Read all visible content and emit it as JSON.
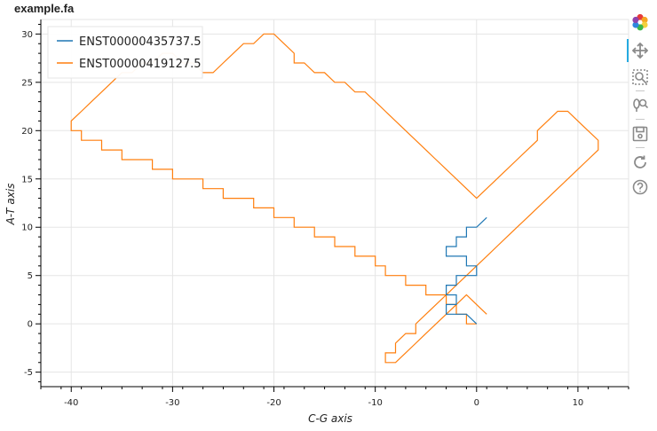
{
  "chart_data": {
    "type": "line",
    "title": "example.fa",
    "xlabel": "C-G axis",
    "ylabel": "A-T axis",
    "xlim": [
      -43,
      15
    ],
    "ylim": [
      -6.5,
      31.5
    ],
    "x_ticks": [
      -40,
      -30,
      -20,
      -10,
      0,
      10
    ],
    "y_ticks": [
      -5,
      0,
      5,
      10,
      15,
      20,
      25,
      30
    ],
    "grid": true,
    "legend_position": "top-left",
    "series": [
      {
        "name": "ENST00000435737.5",
        "color": "#1f77b4",
        "x": [
          0,
          -1,
          -2,
          -3,
          -3,
          -2,
          -2,
          -3,
          -3,
          -2,
          -2,
          -1,
          0,
          0,
          -1,
          -1,
          -2,
          -3,
          -3,
          -2,
          -2,
          -1,
          -1,
          0,
          1
        ],
        "y": [
          0,
          1,
          1,
          1,
          2,
          2,
          3,
          3,
          4,
          4,
          5,
          5,
          5,
          6,
          6,
          7,
          7,
          7,
          8,
          8,
          9,
          9,
          10,
          10,
          11
        ]
      },
      {
        "name": "ENST00000419127.5",
        "color": "#ff7f0e",
        "x": [
          0,
          -1,
          -1,
          -2,
          -2,
          -3,
          -3,
          -4,
          -5,
          -5,
          -6,
          -7,
          -7,
          -8,
          -9,
          -9,
          -10,
          -10,
          -11,
          -12,
          -12,
          -13,
          -14,
          -14,
          -15,
          -16,
          -16,
          -17,
          -18,
          -18,
          -19,
          -20,
          -20,
          -21,
          -22,
          -22,
          -23,
          -24,
          -25,
          -25,
          -26,
          -27,
          -27,
          -28,
          -29,
          -30,
          -30,
          -31,
          -32,
          -32,
          -33,
          -34,
          -35,
          -35,
          -36,
          -37,
          -37,
          -38,
          -39,
          -39,
          -40,
          -40,
          -39,
          -38,
          -37,
          -36,
          -35,
          -34,
          -33,
          -32,
          -31,
          -30,
          -29,
          -28,
          -27,
          -26,
          -25,
          -24,
          -23,
          -22,
          -21,
          -20,
          -19,
          -18,
          -18,
          -17,
          -16,
          -15,
          -14,
          -13,
          -12,
          -11,
          -10,
          -9,
          -8,
          -7,
          -6,
          -5,
          -4,
          -3,
          -2,
          -1,
          0,
          1,
          2,
          3,
          4,
          5,
          6,
          6,
          7,
          8,
          9,
          10,
          11,
          12,
          12,
          11,
          10,
          9,
          8,
          7,
          6,
          5,
          4,
          3,
          2,
          1,
          0,
          -1,
          -2,
          -3,
          -4,
          -5,
          -6,
          -6,
          -7,
          -8,
          -8,
          -9,
          -9,
          -8,
          -7,
          -6,
          -5,
          -4,
          -3,
          -2,
          -1,
          0,
          1
        ],
        "y": [
          0,
          0,
          1,
          1,
          2,
          2,
          3,
          3,
          3,
          4,
          4,
          4,
          5,
          5,
          5,
          6,
          6,
          7,
          7,
          7,
          8,
          8,
          8,
          9,
          9,
          9,
          10,
          10,
          10,
          11,
          11,
          11,
          12,
          12,
          12,
          13,
          13,
          13,
          13,
          14,
          14,
          14,
          15,
          15,
          15,
          15,
          16,
          16,
          16,
          17,
          17,
          17,
          17,
          18,
          18,
          18,
          19,
          19,
          19,
          20,
          20,
          21,
          22,
          23,
          24,
          25,
          26,
          26,
          27,
          27,
          28,
          28,
          27,
          27,
          26,
          26,
          27,
          28,
          29,
          29,
          30,
          30,
          29,
          28,
          27,
          27,
          26,
          26,
          25,
          25,
          24,
          24,
          23,
          22,
          21,
          20,
          19,
          18,
          17,
          16,
          15,
          14,
          13,
          14,
          15,
          16,
          17,
          18,
          19,
          20,
          21,
          22,
          22,
          21,
          20,
          19,
          18,
          17,
          16,
          15,
          14,
          13,
          12,
          11,
          10,
          9,
          8,
          7,
          6,
          5,
          4,
          3,
          2,
          1,
          0,
          -1,
          -1,
          -2,
          -3,
          -3,
          -4,
          -4,
          -3,
          -2,
          -1,
          0,
          1,
          2,
          3,
          2,
          1
        ]
      }
    ]
  },
  "toolbar": {
    "tools": [
      "bokeh-logo",
      "pan-tool",
      "box-zoom-tool",
      "wheel-zoom-tool",
      "save-tool",
      "reset-tool",
      "help-tool"
    ]
  }
}
